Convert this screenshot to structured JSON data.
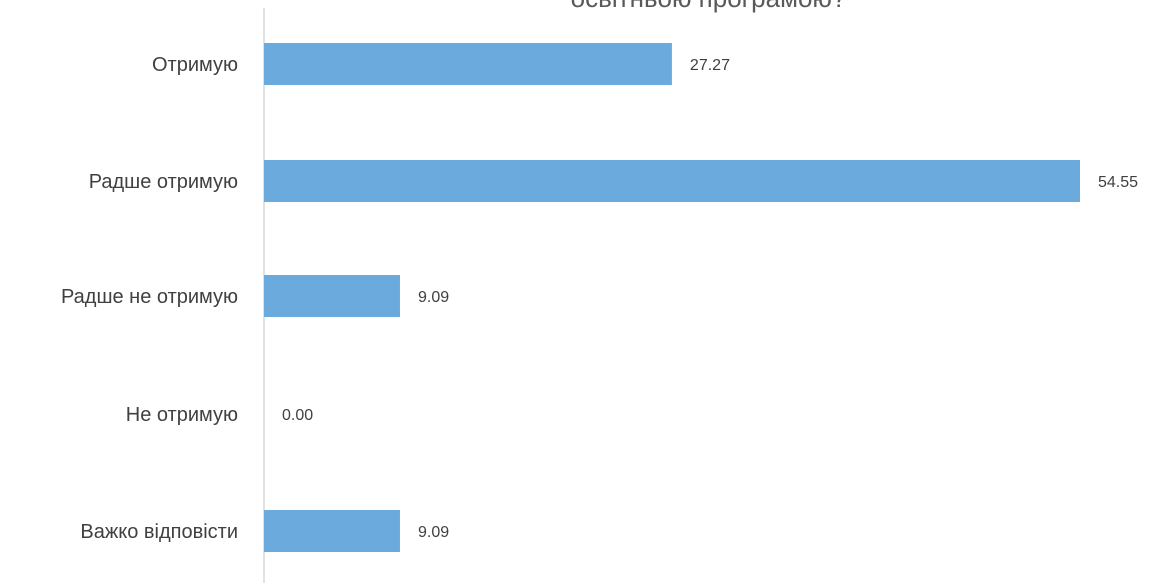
{
  "chart_data": {
    "type": "bar",
    "orientation": "horizontal",
    "title": "освітньою програмою?",
    "categories": [
      "Отримую",
      "Радше отримую",
      "Радше не отримую",
      "Не отримую",
      "Важко відповісти"
    ],
    "values": [
      27.27,
      54.55,
      9.09,
      0.0,
      9.09
    ],
    "value_labels": [
      "27.27",
      "54.55",
      "9.09",
      "0.00",
      "9.09"
    ],
    "xlabel": "",
    "ylabel": "",
    "xlim": [
      0,
      54.55
    ],
    "grid": false,
    "legend": "none",
    "colors": {
      "bar": "#6aaadc",
      "axis": "#d9d9d9",
      "category_text": "#404040",
      "label_text": "#404040",
      "title_text": "#595959"
    }
  }
}
